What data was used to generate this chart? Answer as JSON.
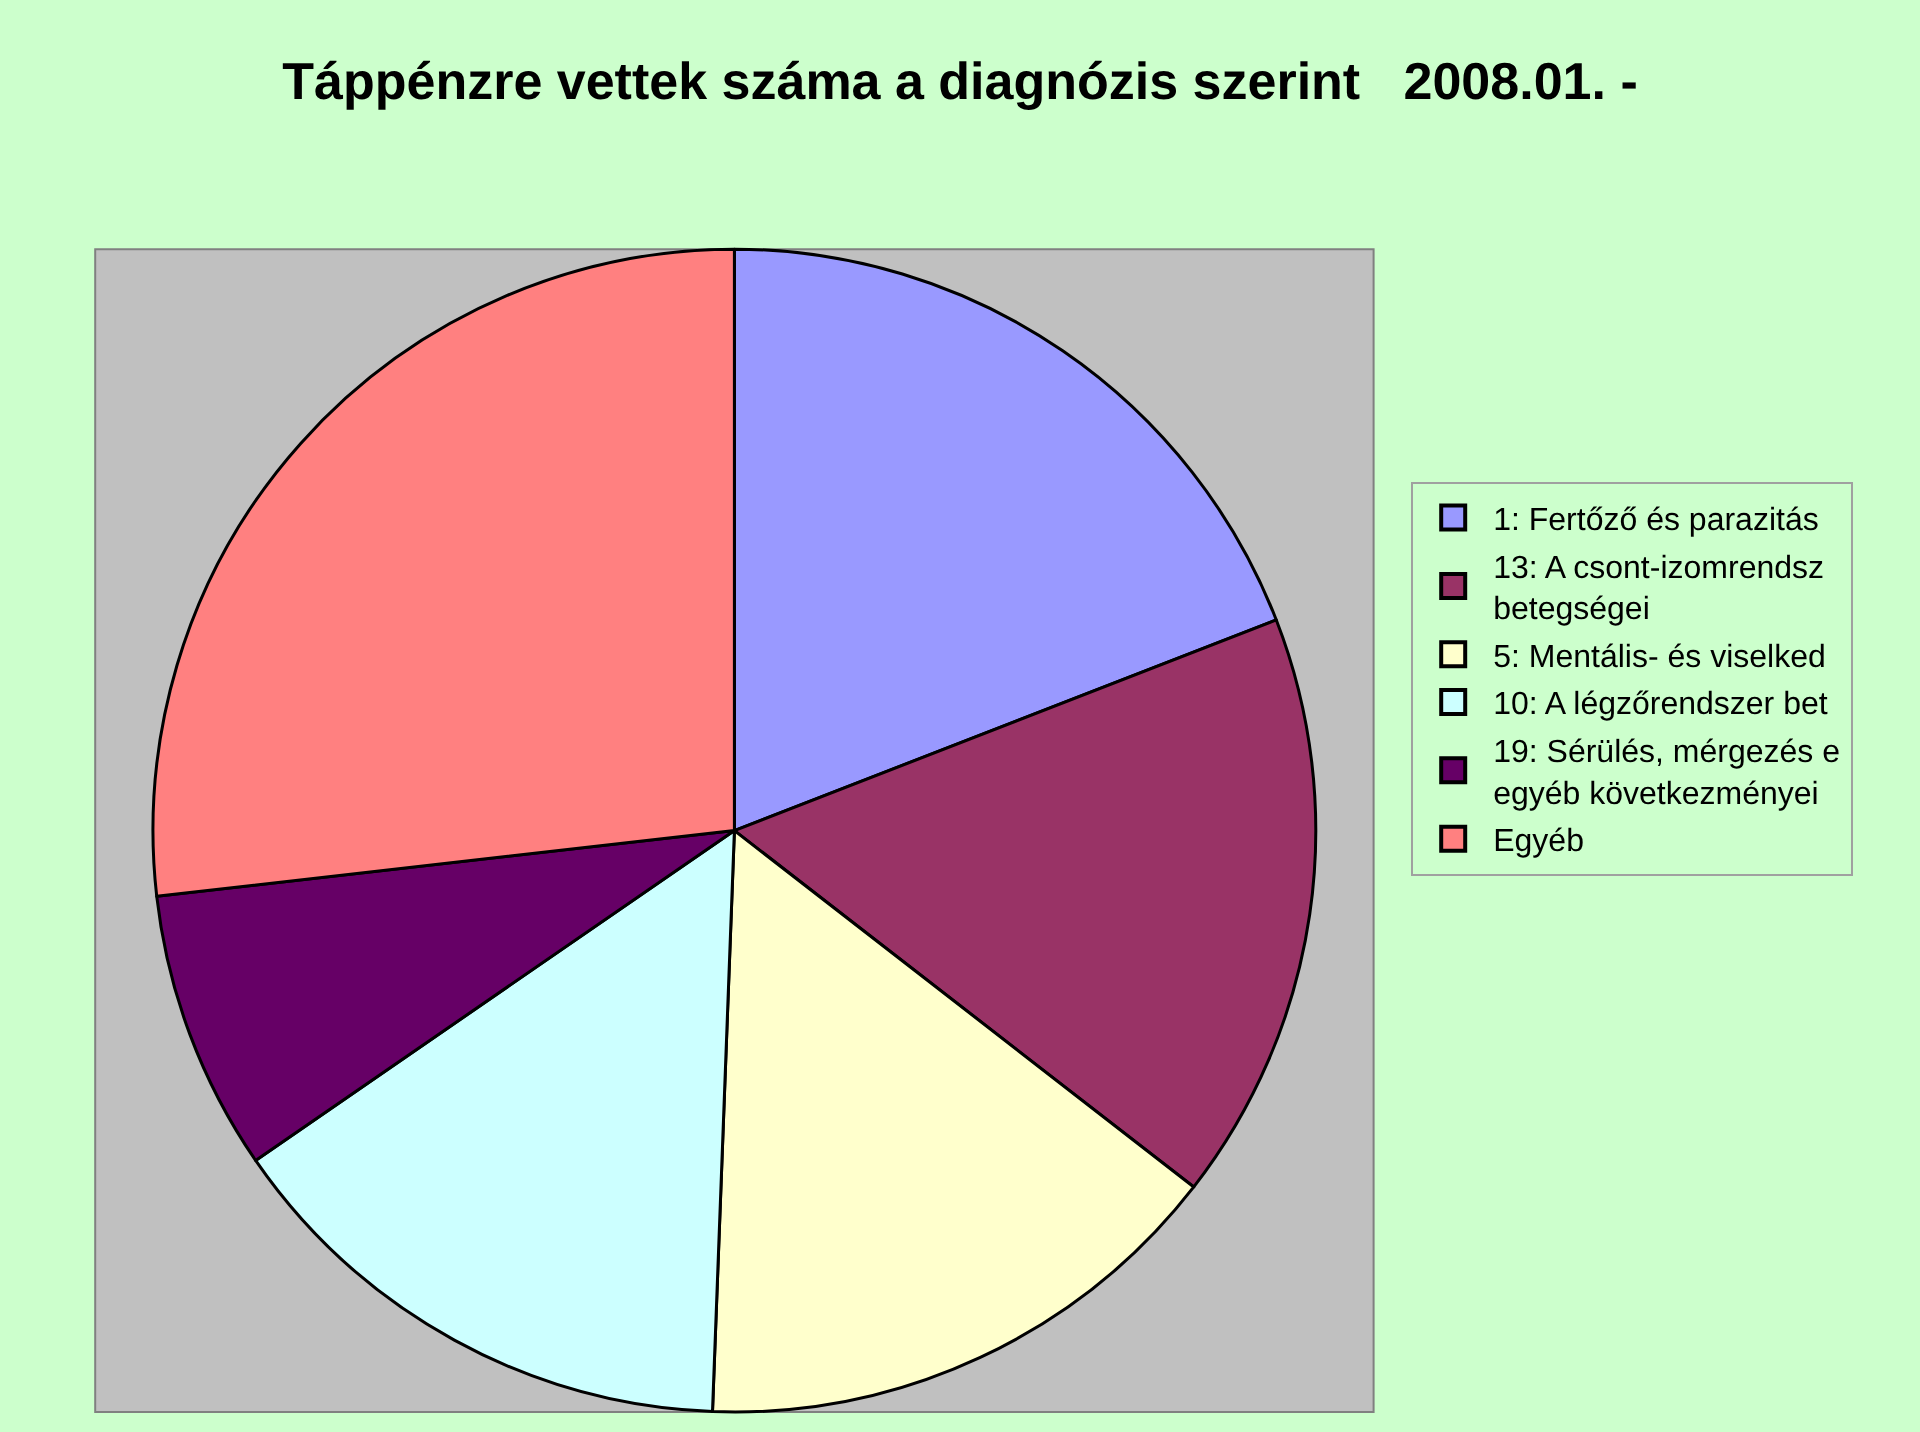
{
  "chart_data": {
    "type": "pie",
    "title": "Táppénzre vettek száma a diagnózis szerint   2008.01. -",
    "categories": [
      "1: Fertőző és parazitás",
      "13: A csont-izomrendsz\nbetegségei",
      "5: Mentális- és viselked",
      "10: A légzőrendszer bet",
      "19: Sérülés, mérgezés e\negyéb következményei",
      "Egyéb"
    ],
    "values": [
      19.1,
      16.4,
      15.1,
      14.8,
      7.8,
      26.8
    ],
    "colors": [
      "#9999ff",
      "#993366",
      "#ffffcc",
      "#ccffff",
      "#660066",
      "#ff8080"
    ],
    "legend": "right"
  }
}
